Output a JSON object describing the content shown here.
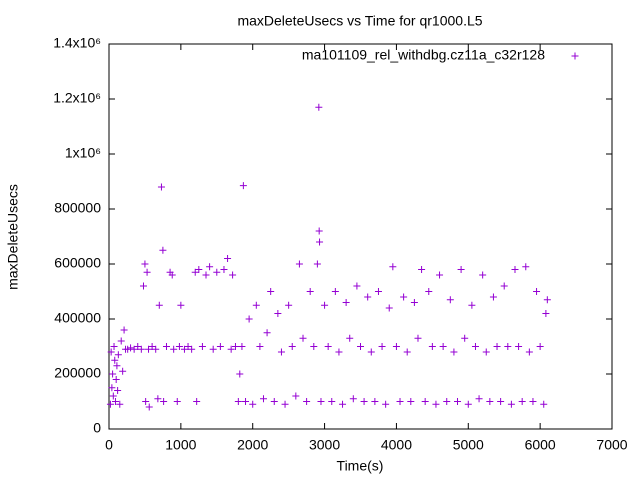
{
  "chart_data": {
    "type": "scatter",
    "title": "maxDeleteUsecs vs Time for qr1000.L5",
    "x_label": "Time(s)",
    "y_label": "maxDeleteUsecs",
    "xlim": [
      0,
      7000
    ],
    "xticks": [
      0,
      1000,
      2000,
      3000,
      4000,
      5000,
      6000,
      7000
    ],
    "ylim": [
      0,
      1400000
    ],
    "yticks": [
      0,
      200000,
      400000,
      600000,
      800000,
      {
        "value": 1000000,
        "label": "1x10⁶"
      },
      {
        "value": 1200000,
        "label": "1.2x10⁶"
      },
      {
        "value": 1400000,
        "label": "1.4x10⁶"
      }
    ],
    "legend": "top-right",
    "x": [
      20,
      30,
      40,
      50,
      60,
      70,
      80,
      90,
      100,
      110,
      120,
      130,
      150,
      170,
      190,
      210,
      230,
      260,
      300,
      350,
      400,
      450,
      480,
      500,
      510,
      530,
      550,
      560,
      600,
      650,
      680,
      700,
      730,
      750,
      760,
      800,
      850,
      880,
      900,
      950,
      980,
      1000,
      1050,
      1100,
      1150,
      1200,
      1220,
      1250,
      1300,
      1350,
      1400,
      1450,
      1500,
      1550,
      1600,
      1650,
      1700,
      1720,
      1760,
      1800,
      1820,
      1850,
      1870,
      1900,
      1950,
      2000,
      2050,
      2100,
      2150,
      2200,
      2250,
      2300,
      2350,
      2400,
      2450,
      2500,
      2550,
      2600,
      2650,
      2700,
      2750,
      2800,
      2850,
      2900,
      2920,
      2925,
      2930,
      2950,
      3000,
      3050,
      3100,
      3150,
      3200,
      3250,
      3300,
      3350,
      3400,
      3450,
      3500,
      3550,
      3600,
      3650,
      3700,
      3750,
      3800,
      3850,
      3900,
      3950,
      4000,
      4050,
      4100,
      4150,
      4200,
      4250,
      4300,
      4350,
      4400,
      4450,
      4500,
      4550,
      4600,
      4650,
      4700,
      4750,
      4800,
      4850,
      4900,
      4950,
      5000,
      5050,
      5100,
      5150,
      5200,
      5250,
      5300,
      5350,
      5400,
      5450,
      5500,
      5550,
      5600,
      5650,
      5700,
      5750,
      5800,
      5850,
      5900,
      5950,
      6000,
      6050,
      6080,
      6100
    ],
    "series": [
      {
        "name": "ma101109_rel_withdbg.cz11a_c32r128",
        "color": "#9400d3",
        "values": [
          90000,
          280000,
          150000,
          200000,
          120000,
          300000,
          250000,
          100000,
          180000,
          230000,
          140000,
          270000,
          90000,
          320000,
          210000,
          360000,
          290000,
          290000,
          295000,
          290000,
          300000,
          290000,
          520000,
          600000,
          100000,
          570000,
          290000,
          80000,
          300000,
          290000,
          110000,
          450000,
          880000,
          650000,
          100000,
          300000,
          570000,
          560000,
          290000,
          100000,
          300000,
          450000,
          290000,
          300000,
          290000,
          570000,
          100000,
          580000,
          300000,
          560000,
          590000,
          290000,
          570000,
          300000,
          580000,
          620000,
          290000,
          560000,
          300000,
          100000,
          200000,
          300000,
          885000,
          100000,
          400000,
          90000,
          450000,
          300000,
          110000,
          350000,
          500000,
          100000,
          420000,
          280000,
          90000,
          450000,
          300000,
          120000,
          600000,
          330000,
          100000,
          500000,
          300000,
          600000,
          1170000,
          720000,
          680000,
          100000,
          450000,
          300000,
          100000,
          500000,
          280000,
          90000,
          460000,
          330000,
          110000,
          520000,
          300000,
          100000,
          480000,
          280000,
          100000,
          500000,
          300000,
          90000,
          440000,
          590000,
          300000,
          100000,
          480000,
          280000,
          100000,
          460000,
          330000,
          580000,
          100000,
          500000,
          300000,
          90000,
          560000,
          300000,
          100000,
          470000,
          280000,
          100000,
          580000,
          330000,
          90000,
          450000,
          300000,
          110000,
          560000,
          280000,
          100000,
          480000,
          300000,
          100000,
          520000,
          300000,
          90000,
          580000,
          300000,
          100000,
          590000,
          280000,
          100000,
          500000,
          300000,
          90000,
          420000,
          470000
        ]
      }
    ]
  }
}
